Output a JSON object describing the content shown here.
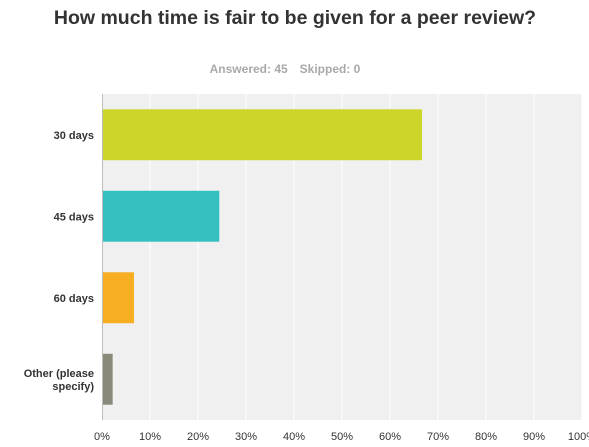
{
  "survey": {
    "title": "How much time is fair to be given for a peer review?",
    "answered_label": "Answered: 45",
    "skipped_label": "Skipped: 0"
  },
  "chart_data": {
    "type": "bar",
    "orientation": "horizontal",
    "categories": [
      [
        "30 days"
      ],
      [
        "45 days"
      ],
      [
        "60 days"
      ],
      [
        "Other (please",
        "specify)"
      ]
    ],
    "values": [
      66.67,
      24.44,
      6.67,
      2.22
    ],
    "colors": [
      "#cdd52a",
      "#35bfc1",
      "#f7ae20",
      "#8a8a7a"
    ],
    "xlim": [
      0,
      100
    ],
    "x_ticks": [
      "0%",
      "10%",
      "20%",
      "30%",
      "40%",
      "50%",
      "60%",
      "70%",
      "80%",
      "90%",
      "100%"
    ],
    "grid": true,
    "background": "#f0f0f0",
    "grid_color": "#ffffff"
  }
}
